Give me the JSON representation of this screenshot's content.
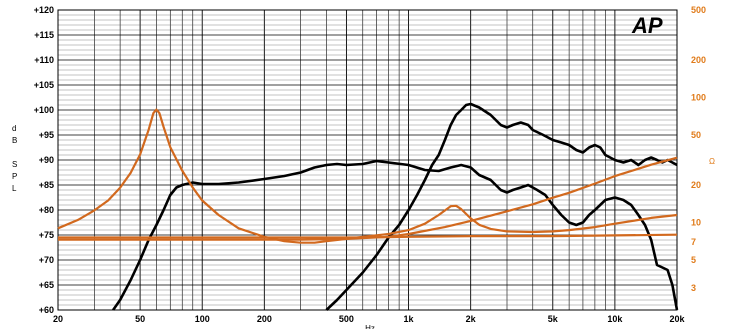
{
  "chart_data": {
    "type": "line",
    "title": "",
    "logo": "AP",
    "xlabel": "Hz",
    "ylabel": "dB SPL",
    "ylabel_right": "Ω",
    "xscale": "log",
    "xlim": [
      20,
      20000
    ],
    "ylim": [
      60,
      120
    ],
    "ylim_right": [
      2,
      500
    ],
    "grid": true,
    "legend": "none",
    "x_ticks": [
      "20",
      "50",
      "100",
      "200",
      "500",
      "1k",
      "2k",
      "5k",
      "10k",
      "20k"
    ],
    "y_ticks_left": [
      "+60",
      "+65",
      "+70",
      "+75",
      "+80",
      "+85",
      "+90",
      "+95",
      "+100",
      "+105",
      "+110",
      "+115",
      "+120"
    ],
    "y_ticks_right": [
      "3",
      "5",
      "7",
      "10",
      "20",
      "50",
      "100",
      "200",
      "500"
    ],
    "colors": {
      "spl": "#000000",
      "impedance": "#d2691e",
      "right_axis": "#e07b1a"
    },
    "series": [
      {
        "axis": "left",
        "points": [
          [
            37,
            60
          ],
          [
            40,
            62
          ],
          [
            45,
            66
          ],
          [
            50,
            70
          ],
          [
            55,
            74
          ],
          [
            60,
            77
          ],
          [
            65,
            80
          ],
          [
            70,
            83
          ],
          [
            75,
            84.5
          ],
          [
            80,
            85
          ],
          [
            90,
            85.5
          ],
          [
            100,
            85.2
          ],
          [
            120,
            85.2
          ],
          [
            150,
            85.5
          ],
          [
            200,
            86.2
          ],
          [
            250,
            86.8
          ],
          [
            300,
            87.5
          ],
          [
            350,
            88.5
          ],
          [
            400,
            89
          ],
          [
            450,
            89.2
          ],
          [
            500,
            89
          ],
          [
            600,
            89.2
          ],
          [
            700,
            89.8
          ],
          [
            800,
            89.5
          ],
          [
            1000,
            89
          ],
          [
            1200,
            88
          ],
          [
            1400,
            87.8
          ],
          [
            1600,
            88.5
          ],
          [
            1800,
            89
          ],
          [
            2000,
            88.5
          ],
          [
            2200,
            87
          ],
          [
            2500,
            86
          ],
          [
            2800,
            84
          ],
          [
            3000,
            83.5
          ],
          [
            3200,
            84
          ],
          [
            3500,
            84.5
          ],
          [
            3800,
            85
          ],
          [
            4200,
            84
          ],
          [
            4600,
            83
          ],
          [
            5000,
            81
          ],
          [
            5500,
            79
          ],
          [
            6000,
            77.5
          ],
          [
            6500,
            77
          ],
          [
            7000,
            77.5
          ],
          [
            7500,
            79
          ],
          [
            8000,
            80
          ],
          [
            9000,
            82
          ],
          [
            10000,
            82.5
          ],
          [
            11000,
            82
          ],
          [
            12000,
            81
          ],
          [
            13000,
            79
          ],
          [
            14000,
            77
          ],
          [
            15000,
            74
          ],
          [
            16000,
            69
          ],
          [
            17000,
            68.5
          ],
          [
            18000,
            68
          ],
          [
            19000,
            65
          ],
          [
            20000,
            60
          ]
        ]
      },
      {
        "axis": "left",
        "points": [
          [
            400,
            60
          ],
          [
            450,
            62
          ],
          [
            500,
            64
          ],
          [
            600,
            67.5
          ],
          [
            700,
            71
          ],
          [
            800,
            74.5
          ],
          [
            900,
            77
          ],
          [
            1000,
            80
          ],
          [
            1100,
            83
          ],
          [
            1200,
            86
          ],
          [
            1300,
            89
          ],
          [
            1400,
            91
          ],
          [
            1500,
            94
          ],
          [
            1600,
            97
          ],
          [
            1700,
            99
          ],
          [
            1800,
            100
          ],
          [
            1900,
            101
          ],
          [
            2000,
            101.2
          ],
          [
            2200,
            100.5
          ],
          [
            2500,
            99
          ],
          [
            2800,
            97
          ],
          [
            3000,
            96.5
          ],
          [
            3200,
            97
          ],
          [
            3500,
            97.5
          ],
          [
            3800,
            97
          ],
          [
            4000,
            96
          ],
          [
            4500,
            95
          ],
          [
            5000,
            94
          ],
          [
            5500,
            93.5
          ],
          [
            6000,
            93
          ],
          [
            6500,
            92
          ],
          [
            7000,
            91.5
          ],
          [
            7500,
            92.5
          ],
          [
            8000,
            93
          ],
          [
            8500,
            92.5
          ],
          [
            9000,
            91
          ],
          [
            10000,
            90
          ],
          [
            11000,
            89.5
          ],
          [
            12000,
            90
          ],
          [
            13000,
            89
          ],
          [
            14000,
            90
          ],
          [
            15000,
            90.5
          ],
          [
            16000,
            90
          ],
          [
            17000,
            89.5
          ],
          [
            18000,
            90
          ],
          [
            19000,
            89.5
          ],
          [
            20000,
            89
          ]
        ]
      },
      {
        "axis": "right",
        "points": [
          [
            20,
            9
          ],
          [
            25,
            10.5
          ],
          [
            30,
            12.5
          ],
          [
            35,
            15
          ],
          [
            40,
            19
          ],
          [
            45,
            25
          ],
          [
            50,
            35
          ],
          [
            55,
            55
          ],
          [
            58,
            75
          ],
          [
            60,
            80
          ],
          [
            62,
            75
          ],
          [
            65,
            58
          ],
          [
            70,
            40
          ],
          [
            80,
            26
          ],
          [
            90,
            19
          ],
          [
            100,
            15
          ],
          [
            120,
            11.5
          ],
          [
            150,
            9
          ],
          [
            200,
            7.7
          ],
          [
            250,
            7.1
          ],
          [
            300,
            6.9
          ],
          [
            350,
            6.9
          ],
          [
            400,
            7.1
          ],
          [
            500,
            7.4
          ],
          [
            600,
            7.7
          ],
          [
            800,
            8.1
          ],
          [
            1000,
            8.7
          ],
          [
            1200,
            9.8
          ],
          [
            1400,
            11.5
          ],
          [
            1600,
            13.5
          ],
          [
            1700,
            13.6
          ],
          [
            1800,
            12.8
          ],
          [
            2000,
            10.8
          ],
          [
            2200,
            9.6
          ],
          [
            2500,
            8.9
          ],
          [
            3000,
            8.5
          ],
          [
            4000,
            8.4
          ],
          [
            5000,
            8.5
          ],
          [
            6000,
            8.7
          ],
          [
            8000,
            9.2
          ],
          [
            10000,
            9.8
          ],
          [
            15000,
            10.9
          ],
          [
            20000,
            11.5
          ]
        ]
      },
      {
        "axis": "right",
        "points": [
          [
            20,
            7.3
          ],
          [
            100,
            7.3
          ],
          [
            200,
            7.3
          ],
          [
            300,
            7.3
          ],
          [
            500,
            7.4
          ],
          [
            800,
            7.7
          ],
          [
            1000,
            8.1
          ],
          [
            1500,
            9.2
          ],
          [
            2000,
            10.3
          ],
          [
            3000,
            12.3
          ],
          [
            4000,
            14
          ],
          [
            5000,
            15.8
          ],
          [
            6000,
            17.3
          ],
          [
            8000,
            20.5
          ],
          [
            10000,
            23.5
          ],
          [
            15000,
            29
          ],
          [
            20000,
            33
          ]
        ]
      },
      {
        "axis": "right",
        "points": [
          [
            20,
            7.6
          ],
          [
            100,
            7.6
          ],
          [
            300,
            7.6
          ],
          [
            600,
            7.6
          ],
          [
            1000,
            7.7
          ],
          [
            2000,
            7.8
          ],
          [
            5000,
            7.8
          ],
          [
            10000,
            7.9
          ],
          [
            20000,
            8
          ]
        ]
      }
    ]
  }
}
